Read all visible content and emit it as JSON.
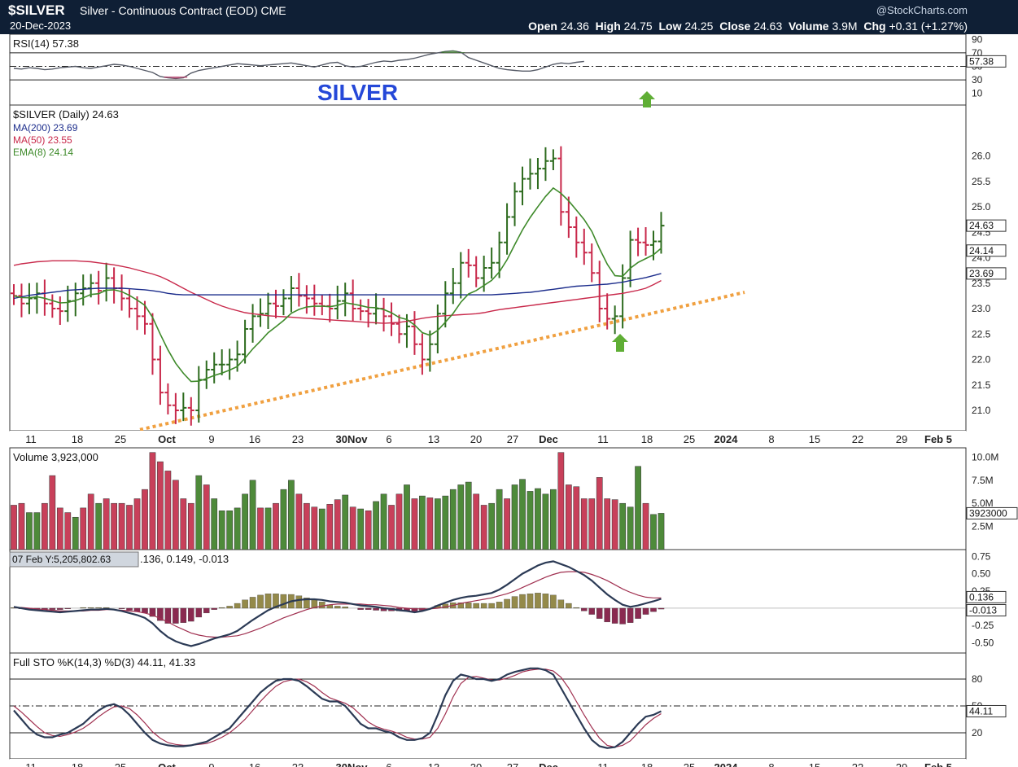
{
  "header": {
    "symbol": "$SILVER",
    "description": "Silver - Continuous Contract (EOD) CME",
    "date": "20-Dec-2023",
    "brand": "@StockCharts.com",
    "open_label": "Open",
    "open": "24.36",
    "high_label": "High",
    "high": "24.75",
    "low_label": "Low",
    "low": "24.25",
    "close_label": "Close",
    "close": "24.63",
    "volume_label": "Volume",
    "volume": "3.9M",
    "chg_label": "Chg",
    "chg": "+0.31 (+1.27%)"
  },
  "annotation": "SILVER",
  "colors": {
    "up": "#2d6b1e",
    "down": "#c8284a",
    "ma200": "#1c2d8c",
    "ma50": "#c8284a",
    "ema8": "#3e8a2a",
    "trend": "#f0a040",
    "arrow": "#5fae35",
    "annotation": "#2548d8"
  },
  "chart_data": {
    "type": "line",
    "xaxis": {
      "ticks": [
        "11",
        "18",
        "25",
        "Oct",
        "9",
        "16",
        "23",
        "30Nov",
        "6",
        "13",
        "20",
        "27",
        "Dec",
        "11",
        "18",
        "25",
        "2024",
        "8",
        "15",
        "22",
        "29",
        "Feb 5"
      ]
    },
    "rsi": {
      "legend": "RSI(14) 57.38",
      "ticks": [
        "90",
        "70",
        "50",
        "30",
        "10"
      ],
      "last_value": "57.38",
      "values": [
        47,
        46,
        48,
        47,
        45,
        46,
        48,
        49,
        50,
        48,
        47,
        49,
        51,
        53,
        52,
        50,
        47,
        44,
        41,
        35,
        33,
        32,
        33,
        40,
        44,
        46,
        48,
        50,
        52,
        54,
        53,
        52,
        51,
        52,
        53,
        54,
        55,
        53,
        51,
        49,
        52,
        55,
        56,
        51,
        49,
        50,
        53,
        56,
        58,
        57,
        59,
        60,
        62,
        65,
        68,
        70,
        72,
        73,
        71,
        63,
        59,
        55,
        51,
        47,
        45,
        44,
        43,
        43,
        45,
        49,
        53,
        55,
        54,
        56,
        57.38
      ]
    },
    "price": {
      "legend": "$SILVER (Daily) 24.63",
      "ma200_label": "MA(200) 23.69",
      "ma50_label": "MA(50) 23.55",
      "ema8_label": "EMA(8) 24.14",
      "ticks": [
        "26.0",
        "25.5",
        "25.0",
        "24.5",
        "24.0",
        "23.5",
        "23.0",
        "22.5",
        "22.0",
        "21.5",
        "21.0"
      ],
      "last_close": "24.63",
      "last_ema8": "24.14",
      "last_ma200": "23.69",
      "ylim": [
        20.6,
        27.0
      ],
      "closes": [
        23.25,
        23.1,
        23.2,
        23.3,
        23.1,
        23.0,
        22.95,
        23.15,
        23.3,
        23.4,
        23.5,
        23.35,
        23.6,
        23.4,
        23.2,
        23.0,
        22.85,
        22.7,
        22.0,
        21.35,
        21.1,
        21.0,
        21.05,
        21.0,
        21.6,
        21.8,
        21.9,
        21.9,
        22.0,
        22.1,
        22.6,
        22.85,
        22.9,
        23.1,
        23.05,
        23.2,
        23.4,
        23.25,
        23.2,
        23.1,
        23.05,
        23.0,
        23.15,
        23.3,
        23.0,
        22.95,
        22.9,
        23.0,
        22.85,
        22.7,
        22.5,
        22.65,
        22.3,
        22.0,
        22.3,
        22.9,
        23.3,
        23.5,
        23.9,
        23.85,
        23.6,
        23.8,
        23.9,
        24.3,
        24.8,
        25.3,
        25.55,
        25.65,
        25.75,
        25.9,
        25.95,
        24.9,
        24.6,
        24.3,
        24.1,
        23.7,
        23.0,
        22.8,
        22.85,
        23.6,
        24.35,
        24.3,
        24.25,
        24.32,
        24.63
      ],
      "ma200": [
        23.2,
        23.23,
        23.26,
        23.28,
        23.3,
        23.32,
        23.34,
        23.36,
        23.37,
        23.38,
        23.39,
        23.4,
        23.4,
        23.4,
        23.4,
        23.39,
        23.38,
        23.37,
        23.35,
        23.33,
        23.3,
        23.28,
        23.27,
        23.27,
        23.27,
        23.27,
        23.27,
        23.27,
        23.27,
        23.27,
        23.27,
        23.27,
        23.27,
        23.27,
        23.27,
        23.27,
        23.27,
        23.27,
        23.27,
        23.27,
        23.27,
        23.27,
        23.27,
        23.27,
        23.27,
        23.27,
        23.27,
        23.27,
        23.27,
        23.27,
        23.27,
        23.27,
        23.27,
        23.27,
        23.27,
        23.27,
        23.27,
        23.27,
        23.27,
        23.27,
        23.27,
        23.27,
        23.27,
        23.28,
        23.29,
        23.3,
        23.31,
        23.32,
        23.34,
        23.36,
        23.38,
        23.4,
        23.42,
        23.44,
        23.45,
        23.46,
        23.47,
        23.48,
        23.5,
        23.52,
        23.55,
        23.58,
        23.61,
        23.65,
        23.69
      ],
      "ma50": [
        23.85,
        23.88,
        23.9,
        23.92,
        23.93,
        23.94,
        23.94,
        23.94,
        23.94,
        23.93,
        23.92,
        23.9,
        23.88,
        23.86,
        23.83,
        23.8,
        23.76,
        23.72,
        23.68,
        23.63,
        23.56,
        23.48,
        23.4,
        23.32,
        23.25,
        23.18,
        23.11,
        23.05,
        23.0,
        22.96,
        22.92,
        22.9,
        22.88,
        22.86,
        22.85,
        22.84,
        22.83,
        22.82,
        22.81,
        22.8,
        22.79,
        22.78,
        22.77,
        22.76,
        22.75,
        22.74,
        22.73,
        22.72,
        22.71,
        22.72,
        22.73,
        22.75,
        22.78,
        22.81,
        22.83,
        22.85,
        22.86,
        22.87,
        22.88,
        22.89,
        22.9,
        22.92,
        22.95,
        22.98,
        23.0,
        23.02,
        23.04,
        23.06,
        23.08,
        23.1,
        23.12,
        23.14,
        23.16,
        23.18,
        23.2,
        23.22,
        23.24,
        23.26,
        23.28,
        23.3,
        23.33,
        23.36,
        23.4,
        23.47,
        23.55
      ]
    },
    "volume": {
      "legend": "Volume 3,923,000",
      "ticks": [
        "10.0M",
        "7.5M",
        "5.0M",
        "2.5M"
      ],
      "last_value": "3923000",
      "ylim": [
        0,
        11000000
      ],
      "values": [
        4.8,
        5.0,
        4.0,
        4.0,
        5.0,
        8.0,
        4.5,
        4.0,
        3.5,
        4.5,
        6.0,
        5.0,
        5.5,
        5.0,
        5.0,
        4.8,
        5.5,
        6.5,
        10.5,
        9.5,
        8.5,
        7.5,
        5.5,
        5.0,
        8.0,
        7.0,
        5.5,
        4.2,
        4.2,
        4.5,
        6.0,
        7.5,
        4.5,
        4.5,
        5.0,
        6.5,
        7.5,
        6.0,
        5.0,
        4.6,
        4.4,
        4.9,
        5.4,
        5.9,
        4.6,
        4.4,
        4.2,
        5.2,
        6.0,
        4.8,
        6.0,
        7.0,
        5.5,
        5.8,
        5.6,
        5.5,
        5.8,
        6.5,
        7.0,
        7.3,
        6.0,
        4.8,
        5.0,
        6.5,
        5.5,
        7.0,
        7.6,
        6.3,
        6.6,
        6.0,
        6.5,
        10.5,
        7.0,
        6.8,
        5.5,
        5.5,
        7.8,
        5.5,
        5.4,
        5.0,
        4.6,
        9.0,
        5.0,
        3.8,
        3.923
      ],
      "up_flags": [
        0,
        0,
        1,
        1,
        0,
        0,
        0,
        0,
        1,
        0,
        0,
        1,
        0,
        0,
        0,
        0,
        0,
        0,
        0,
        0,
        0,
        0,
        0,
        0,
        1,
        0,
        1,
        1,
        1,
        1,
        1,
        1,
        0,
        1,
        0,
        1,
        1,
        0,
        0,
        0,
        1,
        0,
        0,
        1,
        0,
        1,
        0,
        1,
        1,
        0,
        0,
        1,
        0,
        1,
        0,
        1,
        1,
        1,
        1,
        1,
        0,
        0,
        1,
        1,
        0,
        1,
        1,
        1,
        1,
        1,
        1,
        0,
        0,
        0,
        0,
        0,
        0,
        0,
        0,
        1,
        1,
        1,
        0,
        1,
        1
      ]
    },
    "macd": {
      "tooltip": "07 Feb Y:5,205,802.63",
      "legend_tail": ".136, 0.149, -0.013",
      "ticks": [
        "0.75",
        "0.50",
        "0.25",
        "0.136",
        "-0.013",
        "-0.25",
        "-0.50"
      ],
      "last_macd": "0.136",
      "last_hist": "-0.013",
      "ylim": [
        -0.65,
        0.85
      ],
      "macd": [
        0.02,
        0.0,
        -0.02,
        -0.03,
        -0.04,
        -0.05,
        -0.06,
        -0.05,
        -0.04,
        -0.03,
        -0.02,
        -0.02,
        -0.01,
        -0.02,
        -0.04,
        -0.07,
        -0.1,
        -0.14,
        -0.22,
        -0.33,
        -0.42,
        -0.48,
        -0.52,
        -0.55,
        -0.52,
        -0.48,
        -0.44,
        -0.41,
        -0.38,
        -0.33,
        -0.25,
        -0.17,
        -0.1,
        -0.03,
        0.02,
        0.06,
        0.1,
        0.12,
        0.13,
        0.13,
        0.12,
        0.1,
        0.09,
        0.08,
        0.06,
        0.04,
        0.03,
        0.02,
        0.0,
        -0.01,
        -0.03,
        -0.04,
        -0.06,
        -0.04,
        -0.01,
        0.04,
        0.08,
        0.12,
        0.15,
        0.17,
        0.18,
        0.2,
        0.22,
        0.27,
        0.34,
        0.42,
        0.5,
        0.56,
        0.62,
        0.66,
        0.68,
        0.64,
        0.6,
        0.54,
        0.48,
        0.4,
        0.3,
        0.2,
        0.12,
        0.05,
        0.02,
        0.04,
        0.07,
        0.1,
        0.136
      ],
      "signal": [
        0.01,
        0.01,
        0.0,
        -0.01,
        -0.02,
        -0.03,
        -0.04,
        -0.04,
        -0.04,
        -0.04,
        -0.03,
        -0.03,
        -0.02,
        -0.02,
        -0.03,
        -0.04,
        -0.05,
        -0.07,
        -0.1,
        -0.15,
        -0.2,
        -0.26,
        -0.31,
        -0.36,
        -0.39,
        -0.41,
        -0.42,
        -0.42,
        -0.41,
        -0.4,
        -0.37,
        -0.33,
        -0.29,
        -0.24,
        -0.19,
        -0.14,
        -0.1,
        -0.06,
        -0.02,
        0.01,
        0.03,
        0.05,
        0.06,
        0.06,
        0.06,
        0.06,
        0.05,
        0.05,
        0.04,
        0.03,
        0.01,
        0.0,
        -0.01,
        -0.01,
        -0.01,
        0.0,
        0.02,
        0.04,
        0.07,
        0.09,
        0.11,
        0.13,
        0.15,
        0.18,
        0.21,
        0.25,
        0.3,
        0.35,
        0.4,
        0.45,
        0.49,
        0.52,
        0.53,
        0.53,
        0.52,
        0.49,
        0.45,
        0.4,
        0.34,
        0.28,
        0.23,
        0.19,
        0.16,
        0.15,
        0.149
      ]
    },
    "sto": {
      "legend": "Full STO %K(14,3) %D(3) 44.11, 41.33",
      "ticks": [
        "80",
        "50",
        "20"
      ],
      "last_value": "44.11",
      "k": [
        45,
        35,
        25,
        18,
        15,
        15,
        18,
        20,
        25,
        30,
        38,
        45,
        50,
        52,
        48,
        40,
        30,
        20,
        12,
        8,
        6,
        5,
        5,
        6,
        8,
        10,
        15,
        20,
        25,
        35,
        45,
        55,
        65,
        72,
        78,
        80,
        80,
        78,
        72,
        65,
        58,
        55,
        55,
        50,
        40,
        30,
        25,
        25,
        22,
        20,
        15,
        12,
        12,
        14,
        20,
        40,
        62,
        78,
        85,
        83,
        80,
        80,
        78,
        80,
        85,
        88,
        90,
        92,
        92,
        90,
        85,
        70,
        55,
        40,
        25,
        12,
        5,
        3,
        4,
        10,
        20,
        30,
        38,
        40,
        44.11
      ],
      "d": [
        50,
        43,
        35,
        27,
        20,
        17,
        16,
        18,
        21,
        25,
        31,
        38,
        44,
        49,
        50,
        47,
        40,
        31,
        21,
        14,
        9,
        7,
        6,
        6,
        7,
        8,
        11,
        15,
        20,
        27,
        35,
        45,
        55,
        64,
        72,
        77,
        79,
        80,
        77,
        72,
        65,
        59,
        56,
        53,
        48,
        40,
        32,
        27,
        24,
        22,
        19,
        15,
        13,
        13,
        15,
        25,
        41,
        60,
        75,
        82,
        83,
        81,
        79,
        79,
        81,
        84,
        88,
        90,
        91,
        91,
        89,
        82,
        70,
        55,
        40,
        26,
        14,
        6,
        4,
        6,
        11,
        20,
        29,
        36,
        41.33
      ]
    }
  }
}
